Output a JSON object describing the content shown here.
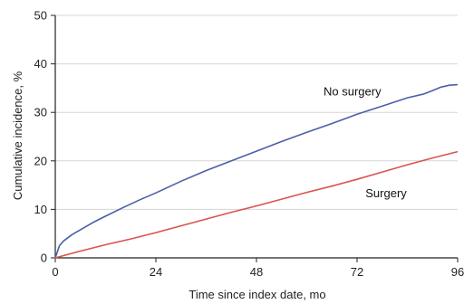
{
  "chart_data": {
    "type": "line",
    "title": "",
    "xlabel": "Time since index date, mo",
    "ylabel": "Cumulative incidence, %",
    "xlim": [
      0,
      96
    ],
    "ylim": [
      0,
      50
    ],
    "xticks": [
      0,
      24,
      48,
      72,
      96
    ],
    "yticks": [
      0,
      10,
      20,
      30,
      40,
      50
    ],
    "grid": true,
    "series": [
      {
        "name": "No surgery",
        "color": "#4a5fa8",
        "x": [
          0,
          1,
          2,
          4,
          6,
          9,
          12,
          16,
          20,
          24,
          30,
          36,
          42,
          48,
          54,
          60,
          66,
          72,
          78,
          84,
          88,
          90,
          92,
          94,
          96
        ],
        "y": [
          0,
          2.5,
          3.5,
          4.8,
          5.8,
          7.3,
          8.6,
          10.3,
          11.9,
          13.4,
          15.8,
          18.0,
          20.0,
          22.0,
          24.0,
          25.9,
          27.7,
          29.6,
          31.3,
          33.0,
          33.8,
          34.5,
          35.2,
          35.6,
          35.7
        ]
      },
      {
        "name": "Surgery",
        "color": "#d9534f",
        "x": [
          0,
          6,
          12,
          18,
          24,
          30,
          36,
          42,
          48,
          54,
          60,
          66,
          72,
          78,
          84,
          90,
          96
        ],
        "y": [
          0,
          1.4,
          2.7,
          3.9,
          5.2,
          6.6,
          8.0,
          9.4,
          10.7,
          12.1,
          13.5,
          14.8,
          16.2,
          17.7,
          19.2,
          20.6,
          21.9
        ]
      }
    ],
    "annotations": [
      {
        "text": "No surgery",
        "x": 64,
        "y": 33.5
      },
      {
        "text": "Surgery",
        "x": 74,
        "y": 12.5
      }
    ]
  }
}
